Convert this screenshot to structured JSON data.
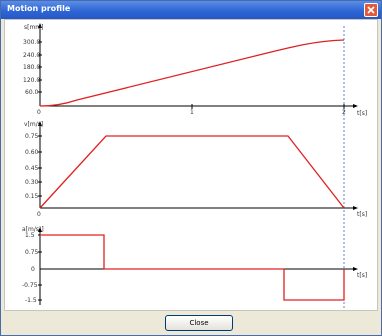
{
  "window": {
    "title": "Motion profile"
  },
  "plots": {
    "position": {
      "y_label": "s[mm]",
      "x_label": "t[s]",
      "y_ticks": [
        "300.0",
        "240.0",
        "180.0",
        "120.0",
        "60.0"
      ],
      "x_ticks": [
        "0",
        "1",
        "2"
      ]
    },
    "velocity": {
      "y_label": "v[m/s]",
      "x_label": "t[s]",
      "y_ticks": [
        "0.75",
        "0.60",
        "0.45",
        "0.30",
        "0.15"
      ],
      "x_ticks": [
        "0"
      ]
    },
    "acceleration": {
      "y_label": "a[m/s²]",
      "x_label": "t[s]",
      "y_ticks": [
        "1.5",
        "0.75",
        "0",
        "-0.75",
        "-1.5"
      ],
      "x_ticks": []
    }
  },
  "colors": {
    "curve": "#e02020",
    "axis": "#000000",
    "marker": "#4060c0"
  },
  "footer": {
    "close_label": "Close"
  }
}
